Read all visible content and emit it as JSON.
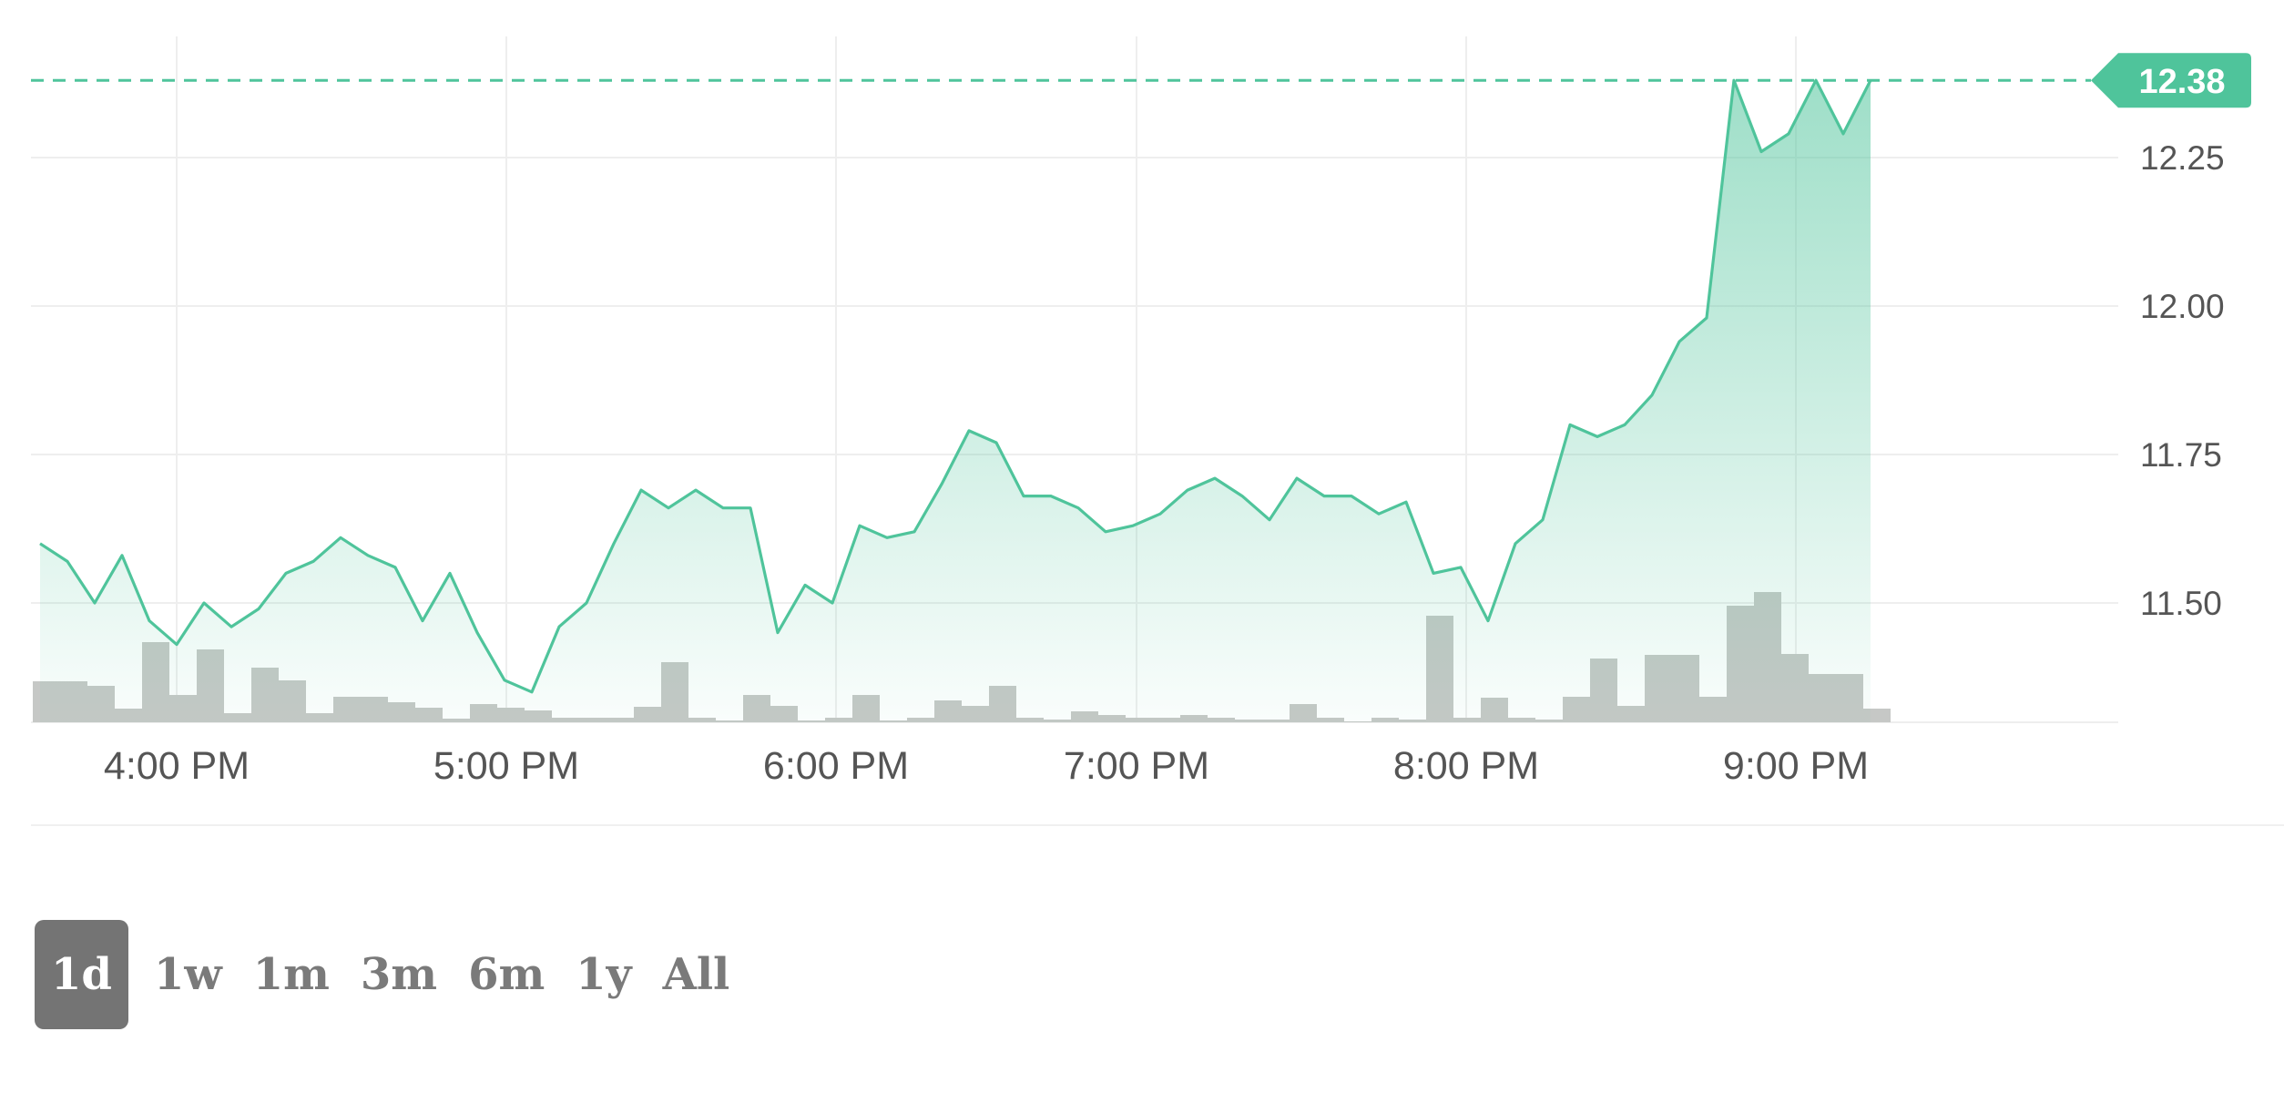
{
  "chart_data": {
    "type": "line",
    "title": "",
    "xlabel": "",
    "ylabel": "",
    "grid": true,
    "current_price_label": "12.38",
    "current_price": 12.38,
    "x_tick_labels": [
      "4:00 PM",
      "5:00 PM",
      "6:00 PM",
      "7:00 PM",
      "8:00 PM",
      "9:00 PM"
    ],
    "y_tick_labels": [
      "12.25",
      "12.00",
      "11.75",
      "11.50"
    ],
    "y_ticks": [
      12.25,
      12.0,
      11.75,
      11.5
    ],
    "ylim": [
      11.3,
      12.5
    ],
    "x_start_time": "3:34 PM",
    "x_end_time": "10:00 PM",
    "x_interval_minutes": 5,
    "series": [
      {
        "values": [
          11.6,
          11.57,
          11.5,
          11.58,
          11.47,
          11.43,
          11.5,
          11.46,
          11.49,
          11.55,
          11.57,
          11.61,
          11.58,
          11.56,
          11.47,
          11.55,
          11.45,
          11.37,
          11.35,
          11.46,
          11.5,
          11.6,
          11.69,
          11.66,
          11.69,
          11.66,
          11.66,
          11.45,
          11.53,
          11.5,
          11.63,
          11.61,
          11.62,
          11.7,
          11.79,
          11.77,
          11.68,
          11.68,
          11.66,
          11.62,
          11.63,
          11.65,
          11.69,
          11.71,
          11.68,
          11.64,
          11.71,
          11.68,
          11.68,
          11.65,
          11.67,
          11.55,
          11.56,
          11.47,
          11.6,
          11.64,
          11.8,
          11.78,
          11.8,
          11.85,
          11.94,
          11.98,
          12.38,
          12.26,
          12.29,
          12.38,
          12.29,
          12.38
        ]
      }
    ],
    "volume": [
      0.45,
      0.45,
      0.4,
      0.15,
      0.88,
      0.3,
      0.8,
      0.1,
      0.6,
      0.46,
      0.1,
      0.28,
      0.28,
      0.22,
      0.16,
      0.04,
      0.2,
      0.16,
      0.13,
      0.05,
      0.05,
      0.05,
      0.17,
      0.66,
      0.05,
      0.02,
      0.3,
      0.18,
      0.02,
      0.05,
      0.3,
      0.02,
      0.05,
      0.24,
      0.18,
      0.4,
      0.05,
      0.03,
      0.12,
      0.08,
      0.05,
      0.05,
      0.08,
      0.05,
      0.03,
      0.03,
      0.2,
      0.05,
      0.01,
      0.05,
      0.03,
      1.17,
      0.05,
      0.27,
      0.05,
      0.03,
      0.28,
      0.7,
      0.18,
      0.74,
      0.74,
      0.28,
      1.28,
      1.43,
      0.75,
      0.53,
      0.53,
      0.15
    ],
    "colors": {
      "line": "#4fc49b",
      "area_top": "#4fc49b",
      "badge": "#4fc49b",
      "volume": "#c6c8c6",
      "volume_stroke": "#b9bbb9",
      "grid": "#eeeeee",
      "tick_text": "#555555"
    }
  },
  "range_selector": {
    "selected": "1d",
    "options": [
      "1d",
      "1w",
      "1m",
      "3m",
      "6m",
      "1y",
      "All"
    ]
  }
}
